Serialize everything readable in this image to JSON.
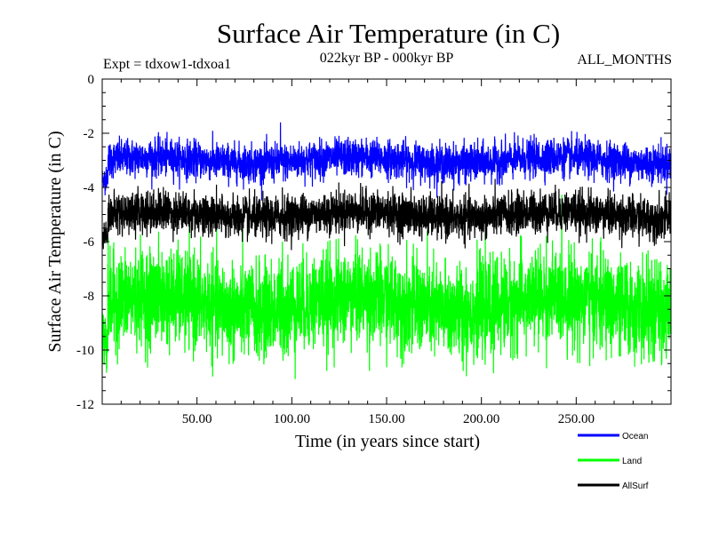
{
  "chart_data": {
    "type": "line",
    "title": "Surface Air Temperature (in C)",
    "subtitle": "022kyr BP - 000kyr BP",
    "experiment": "Expt = tdxow1-tdxoa1",
    "months": "ALL_MONTHS",
    "xlabel": "Time (in years since start)",
    "ylabel": "Surface Air Temperature (in C)",
    "xlim": [
      0,
      300
    ],
    "ylim": [
      -12,
      0
    ],
    "x_ticks": [
      50,
      100,
      150,
      200,
      250
    ],
    "x_tick_labels": [
      "50.00",
      "100.00",
      "150.00",
      "200.00",
      "250.00"
    ],
    "y_ticks": [
      0,
      -2,
      -4,
      -6,
      -8,
      -10,
      -12
    ],
    "y_tick_labels": [
      "0",
      "-2",
      "-4",
      "-6",
      "-8",
      "-10",
      "-12"
    ],
    "n_points": 3600,
    "series": [
      {
        "name": "Ocean",
        "color": "#0000ff",
        "mean": -3.0,
        "spread": 0.9,
        "start": -3.7,
        "peak_x": 94,
        "peak_y": -1.6
      },
      {
        "name": "Land",
        "color": "#00ff00",
        "mean": -8.3,
        "spread": 2.3,
        "start": -9.6,
        "peak_x": 95,
        "peak_y": -6.0
      },
      {
        "name": "AllSurf",
        "color": "#000000",
        "mean": -5.0,
        "spread": 1.0,
        "start": -5.7,
        "peak_x": 95,
        "peak_y": -4.0
      }
    ]
  }
}
